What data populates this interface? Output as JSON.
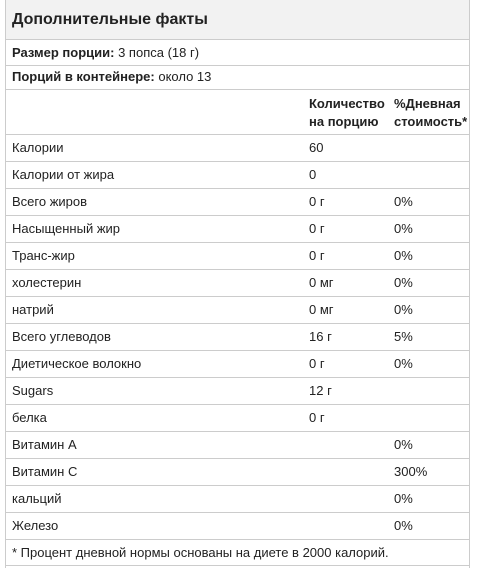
{
  "title": "Дополнительные факты",
  "serving_size": {
    "label": "Размер порции:",
    "value": "3 попса (18 г)"
  },
  "servings_per_container": {
    "label": "Порций в контейнере:",
    "value": "около 13"
  },
  "columns": {
    "amount": [
      "Количество",
      "на порцию"
    ],
    "daily_value": [
      "%Дневная",
      "стоимость*"
    ]
  },
  "rows": [
    {
      "name": "Калории",
      "amount": "60"
    },
    {
      "name": "Калории от жира",
      "amount": "0"
    },
    {
      "name": "Всего жиров",
      "amount": "0 г",
      "daily_value": "0%"
    },
    {
      "name": "Насыщенный жир",
      "amount": "0 г",
      "daily_value": "0%"
    },
    {
      "name": "Транс-жир",
      "amount": "0 г",
      "daily_value": "0%"
    },
    {
      "name": "холестерин",
      "amount": "0 мг",
      "daily_value": "0%"
    },
    {
      "name": "натрий",
      "amount": "0 мг",
      "daily_value": "0%"
    },
    {
      "name": "Всего углеводов",
      "amount": "16 г",
      "daily_value": "5%"
    },
    {
      "name": "Диетическое волокно",
      "amount": "0 г",
      "daily_value": "0%"
    },
    {
      "name": "Sugars",
      "amount": "12 г"
    },
    {
      "name": "белка",
      "amount": "0 г"
    },
    {
      "name": "Витамин A",
      "daily_value": "0%"
    },
    {
      "name": "Витамин C",
      "daily_value": "300%"
    },
    {
      "name": "кальций",
      "daily_value": "0%"
    },
    {
      "name": "Железо",
      "daily_value": "0%"
    }
  ],
  "footnote": "* Процент дневной нормы основаны на диете в 2000 калорий."
}
